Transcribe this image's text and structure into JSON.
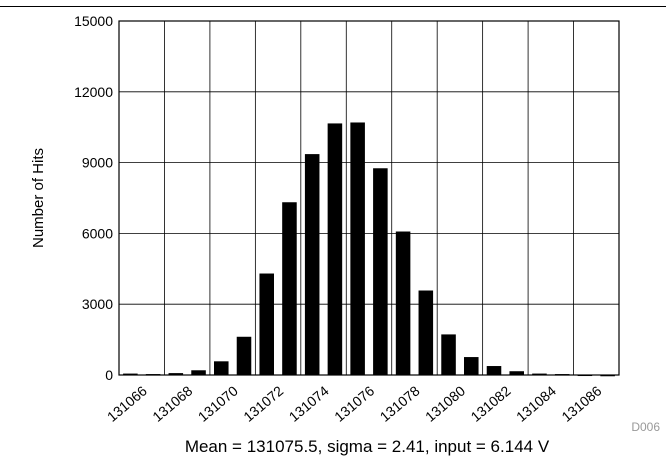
{
  "chart_data": {
    "type": "bar",
    "categories": [
      131066,
      131067,
      131068,
      131069,
      131070,
      131071,
      131072,
      131073,
      131074,
      131075,
      131076,
      131077,
      131078,
      131079,
      131080,
      131081,
      131082,
      131083,
      131084,
      131085,
      131086,
      131087
    ],
    "values": [
      60,
      40,
      80,
      200,
      580,
      1620,
      4300,
      7320,
      9360,
      10660,
      10700,
      8760,
      6080,
      3580,
      1720,
      760,
      380,
      160,
      60,
      40,
      20,
      10
    ],
    "x_tick_labels": [
      "131066",
      "131068",
      "131070",
      "131072",
      "131074",
      "131076",
      "131078",
      "131080",
      "131082",
      "131084",
      "131086"
    ],
    "y_ticks": [
      0,
      3000,
      6000,
      9000,
      12000,
      15000
    ],
    "ylim": [
      0,
      15000
    ],
    "ylabel": "Number of Hits",
    "caption": "Mean = 131075.5, sigma = 2.41, input = 6.144 V",
    "figure_id": "D006",
    "grid": true,
    "colors": {
      "bar": "#000000",
      "grid": "#000000",
      "figure_id": "#999999"
    }
  }
}
